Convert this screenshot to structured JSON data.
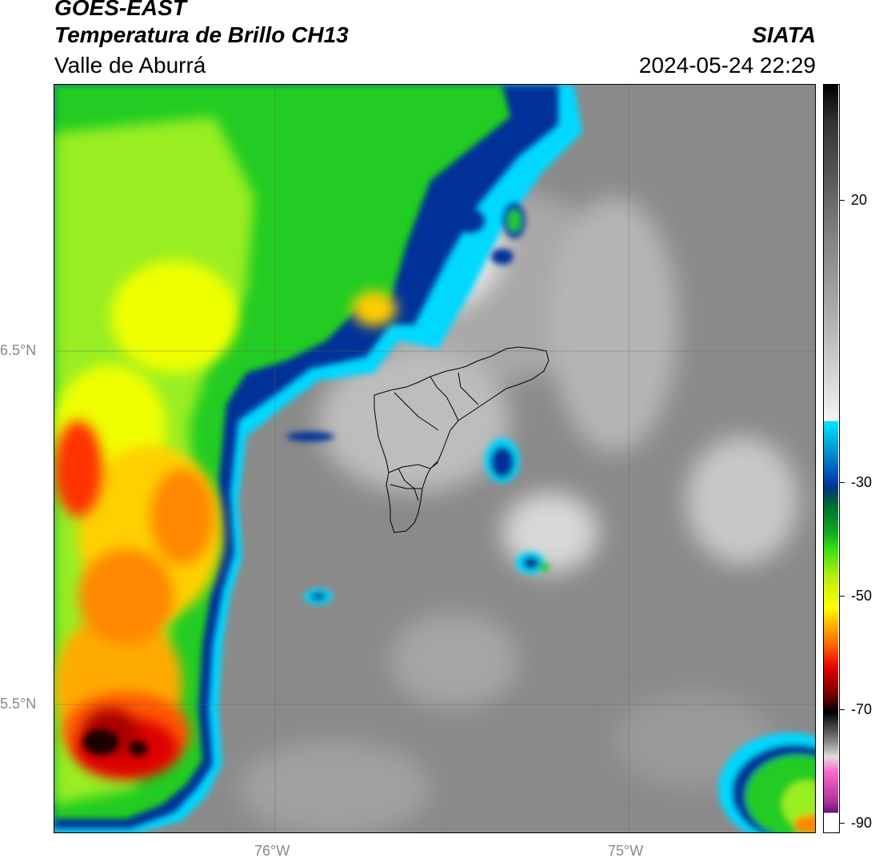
{
  "header": {
    "satellite": "GOES-EAST",
    "product": "Temperatura de Brillo CH13",
    "region": "Valle de Aburrá",
    "org": "SIATA",
    "datetime": "2024-05-24 22:29"
  },
  "axes": {
    "lat_labels": [
      "6.5°N",
      "5.5°N"
    ],
    "lon_labels": [
      "76°W",
      "75°W"
    ]
  },
  "colorbar": {
    "ticks": [
      "20",
      "-30",
      "-50",
      "-70",
      "-90"
    ],
    "tick_values": [
      20,
      -30,
      -50,
      -70,
      -90
    ],
    "range": [
      -92,
      38
    ],
    "colors": {
      "warm_gray": "#808080",
      "light": "#f2f2f2",
      "cyan": "#00e5ff",
      "blue": "#0033aa",
      "dark_green": "#006633",
      "green": "#1ec81e",
      "yellow": "#ffff00",
      "orange": "#ff8800",
      "red": "#e60000",
      "black": "#000000",
      "pink": "#ff66cc",
      "purple": "#7a1a9a"
    }
  }
}
